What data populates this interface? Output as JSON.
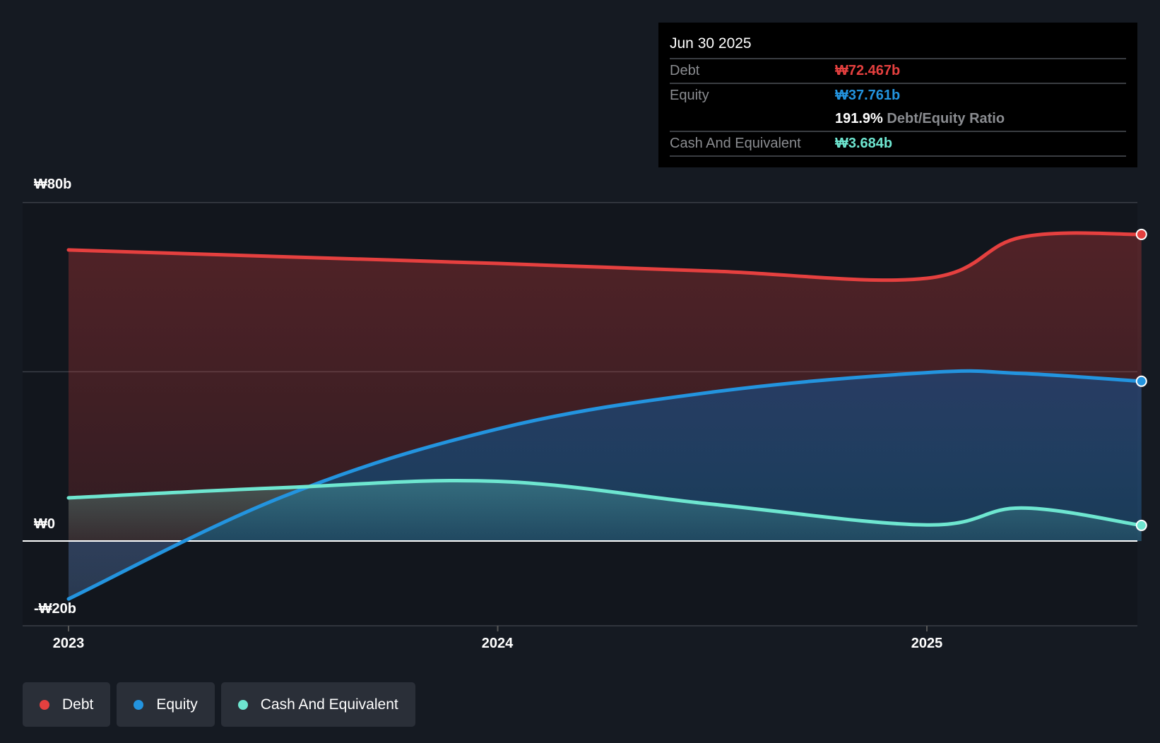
{
  "chart_data": {
    "type": "area",
    "title": "",
    "xlabel": "",
    "ylabel": "",
    "ylim": [
      -20,
      80
    ],
    "xlim": [
      2022.9,
      2025.52
    ],
    "y_ticks": [
      {
        "value": 80,
        "label": "₩80b"
      },
      {
        "value": 0,
        "label": "₩0"
      },
      {
        "value": -20,
        "label": "-₩20b"
      }
    ],
    "x_ticks": [
      {
        "value": 2023,
        "label": "2023"
      },
      {
        "value": 2024,
        "label": "2024"
      },
      {
        "value": 2025,
        "label": "2025"
      }
    ],
    "grid": true,
    "x": [
      2023.0,
      2023.5,
      2024.0,
      2024.5,
      2025.0,
      2025.22,
      2025.5
    ],
    "series": [
      {
        "name": "Debt",
        "color": "#e5403f",
        "values": [
          68.8,
          67.2,
          65.6,
          63.8,
          62.1,
          71.8,
          72.467
        ]
      },
      {
        "name": "Equity",
        "color": "#2394df",
        "values": [
          -13.7,
          10.5,
          26.5,
          35.2,
          39.8,
          39.6,
          37.761
        ]
      },
      {
        "name": "Cash And Equivalent",
        "color": "#6ee6d0",
        "values": [
          10.2,
          12.6,
          14.1,
          8.7,
          3.8,
          7.8,
          3.684
        ]
      }
    ],
    "legend_position": "bottom-left"
  },
  "tooltip": {
    "date": "Jun 30 2025",
    "debt_label": "Debt",
    "debt_value": "₩72.467b",
    "equity_label": "Equity",
    "equity_value": "₩37.761b",
    "ratio_value": "191.9%",
    "ratio_label": "Debt/Equity Ratio",
    "cash_label": "Cash And Equivalent",
    "cash_value": "₩3.684b"
  },
  "legend": [
    {
      "label": "Debt",
      "color": "#e5403f"
    },
    {
      "label": "Equity",
      "color": "#2394df"
    },
    {
      "label": "Cash And Equivalent",
      "color": "#6ee6d0"
    }
  ]
}
